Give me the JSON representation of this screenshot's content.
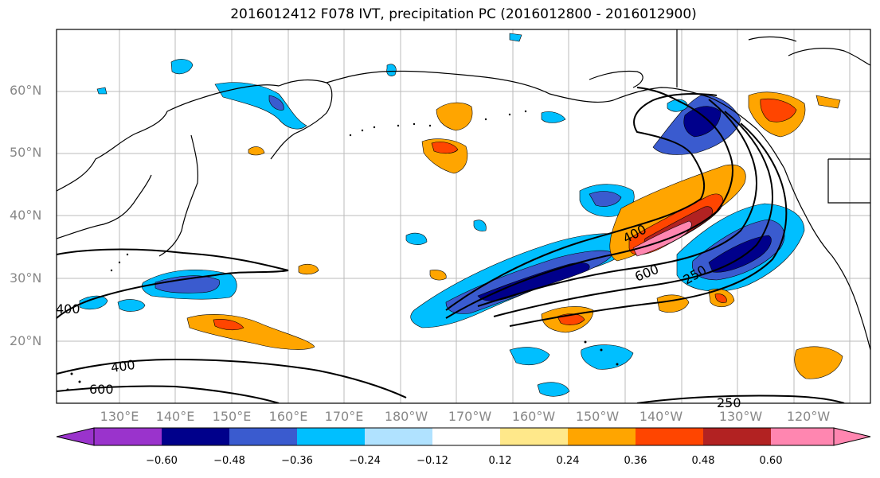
{
  "title": "2016012412 F078 IVT, precipitation PC (2016012800 - 2016012900)",
  "lat_labels": [
    "60°N",
    "50°N",
    "40°N",
    "30°N",
    "20°N"
  ],
  "lon_labels": [
    "130°E",
    "140°E",
    "150°E",
    "160°E",
    "170°E",
    "180°W",
    "170°W",
    "160°W",
    "150°W",
    "140°W",
    "130°W",
    "120°W"
  ],
  "contour_labels": [
    "400",
    "600",
    "250",
    "400",
    "400",
    "600",
    "250"
  ],
  "colorbar": {
    "ticks": [
      "−0.60",
      "−0.48",
      "−0.36",
      "−0.24",
      "−0.12",
      "0.12",
      "0.24",
      "0.36",
      "0.48",
      "0.60"
    ],
    "colors": [
      "#9a33cc",
      "#00008b",
      "#3a5bcf",
      "#00bfff",
      "#b0e2ff",
      "#ffffff",
      "#ffe88a",
      "#ffa500",
      "#ff4500",
      "#b22222",
      "#ff86b0"
    ]
  }
}
